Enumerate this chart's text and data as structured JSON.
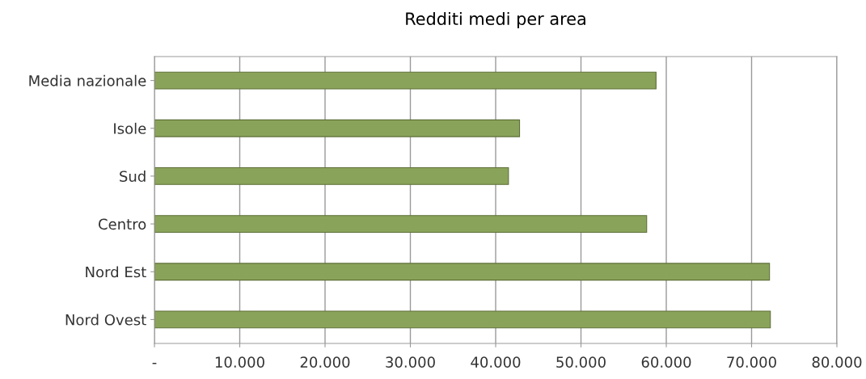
{
  "chart_data": {
    "type": "bar",
    "orientation": "horizontal",
    "title": "Redditi medi per area",
    "categories": [
      "Media nazionale",
      "Isole",
      "Sud",
      "Centro",
      "Nord Est",
      "Nord Ovest"
    ],
    "values": [
      58800,
      42800,
      41500,
      57700,
      72100,
      72200
    ],
    "color": "#8aa35a",
    "xlim": [
      0,
      80000
    ],
    "xticks": [
      {
        "value": 0,
        "label": "-"
      },
      {
        "value": 10000,
        "label": "10.000"
      },
      {
        "value": 20000,
        "label": "20.000"
      },
      {
        "value": 30000,
        "label": "30.000"
      },
      {
        "value": 40000,
        "label": "40.000"
      },
      {
        "value": 50000,
        "label": "50.000"
      },
      {
        "value": 60000,
        "label": "60.000"
      },
      {
        "value": 70000,
        "label": "70.000"
      },
      {
        "value": 80000,
        "label": "80.000"
      }
    ],
    "grid": "x",
    "legend": false
  }
}
